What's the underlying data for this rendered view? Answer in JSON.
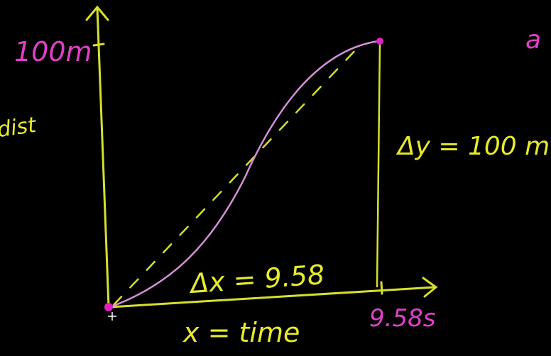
{
  "labels": {
    "y_max": "100m",
    "y_axis_fragment": "dist",
    "delta_y": "Δy = 100 m",
    "delta_x": "Δx = 9.58",
    "x_max": "9.58s",
    "x_axis": "x = time",
    "cut_off_top_right": "a"
  },
  "colors": {
    "background": "#000000",
    "axes": "#d6e02a",
    "annotation_yellow": "#e6ea2c",
    "annotation_pink": "#e040c8",
    "curve": "#d68fd8",
    "secant_dashed": "#d6e02a",
    "endpoints": "#e020c0"
  },
  "graph": {
    "start_point": {
      "time": 0,
      "distance": 0
    },
    "end_point": {
      "time": 9.58,
      "distance": 100
    },
    "curve_shape": "s-curve",
    "secant_line": "dashed"
  }
}
